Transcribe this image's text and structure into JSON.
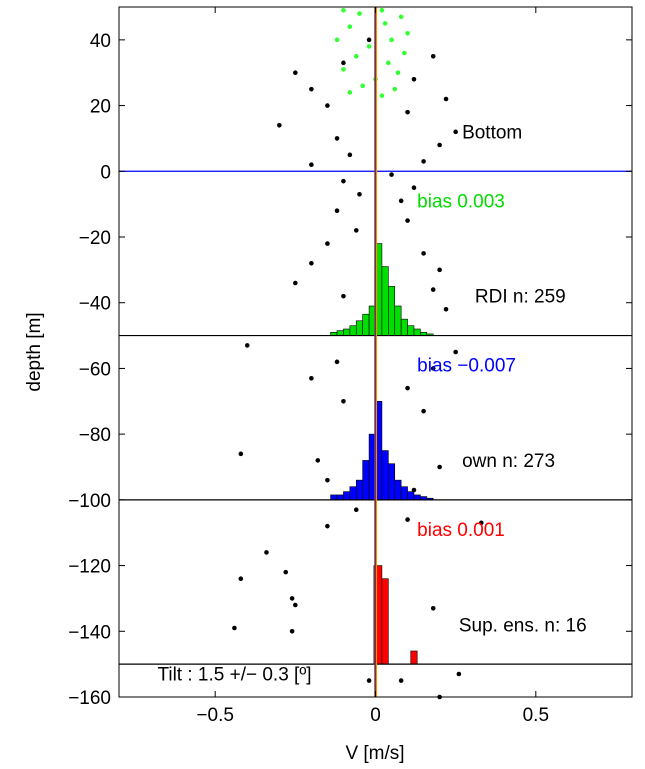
{
  "chart_data": {
    "type": "scatter",
    "xlabel": "V [m/s]",
    "ylabel": "depth [m]",
    "xlim": [
      -0.8,
      0.8
    ],
    "ylim": [
      -160,
      50
    ],
    "xticks": [
      -0.5,
      0,
      0.5
    ],
    "xtick_labels": [
      "−0.5",
      "0",
      "0.5"
    ],
    "yticks": [
      40,
      20,
      0,
      -20,
      -40,
      -60,
      -80,
      -100,
      -120,
      -140,
      -160
    ],
    "ytick_labels": [
      "40",
      "20",
      "0",
      "−20",
      "−40",
      "−60",
      "−80",
      "−100",
      "−120",
      "−140",
      "−160"
    ],
    "horizontal_lines": [
      {
        "y": 0,
        "color": "#0000ff"
      },
      {
        "y": -50,
        "color": "#000000"
      },
      {
        "y": -100,
        "color": "#000000"
      },
      {
        "y": -150,
        "color": "#000000"
      }
    ],
    "vertical_lines": [
      {
        "x": 0.0,
        "color": "#0000ff"
      },
      {
        "x": 0.003,
        "color": "#ff8c00"
      },
      {
        "x": -0.002,
        "color": "#8b4513"
      }
    ],
    "annotations": [
      {
        "text": "Bottom",
        "x": 0.27,
        "y": 10,
        "color": "#000000"
      },
      {
        "text": "bias  0.003",
        "x": 0.13,
        "y": -11,
        "color": "#00dd00"
      },
      {
        "text": "RDI n: 259",
        "x": 0.31,
        "y": -40,
        "color": "#000000"
      },
      {
        "text": "bias −0.007",
        "x": 0.13,
        "y": -61,
        "color": "#0000ff"
      },
      {
        "text": "own n: 273",
        "x": 0.27,
        "y": -90,
        "color": "#000000"
      },
      {
        "text": "bias  0.001",
        "x": 0.13,
        "y": -111,
        "color": "#ff0000"
      },
      {
        "text": "Sup. ens. n: 16",
        "x": 0.26,
        "y": -140,
        "color": "#000000"
      },
      {
        "text": "Tilt : 1.5 +/− 0.3 [º]",
        "x": -0.68,
        "y": -155,
        "color": "#000000"
      }
    ],
    "series": [
      {
        "color": "#00dd00",
        "hist_bins": [
          [
            -0.14,
            -0.12,
            1
          ],
          [
            -0.12,
            -0.1,
            1.5
          ],
          [
            -0.1,
            -0.08,
            2
          ],
          [
            -0.08,
            -0.06,
            3
          ],
          [
            -0.06,
            -0.04,
            4.5
          ],
          [
            -0.04,
            -0.02,
            6.5
          ],
          [
            -0.02,
            0.0,
            9
          ],
          [
            0.0,
            0.02,
            28
          ],
          [
            0.02,
            0.04,
            21
          ],
          [
            0.04,
            0.06,
            15
          ],
          [
            0.06,
            0.08,
            9
          ],
          [
            0.08,
            0.1,
            5
          ],
          [
            0.1,
            0.12,
            3
          ],
          [
            0.12,
            0.14,
            2
          ],
          [
            0.14,
            0.16,
            1
          ],
          [
            0.16,
            0.18,
            0.5
          ]
        ],
        "hist_base": -50
      },
      {
        "color": "#0000ff",
        "hist_bins": [
          [
            -0.14,
            -0.12,
            1.5
          ],
          [
            -0.12,
            -0.1,
            1.5
          ],
          [
            -0.1,
            -0.08,
            2.5
          ],
          [
            -0.08,
            -0.06,
            4
          ],
          [
            -0.06,
            -0.04,
            6
          ],
          [
            -0.04,
            -0.02,
            12
          ],
          [
            -0.02,
            0.0,
            20
          ],
          [
            0.0,
            0.02,
            30
          ],
          [
            0.02,
            0.04,
            15
          ],
          [
            0.04,
            0.06,
            11
          ],
          [
            0.06,
            0.08,
            6
          ],
          [
            0.08,
            0.1,
            4
          ],
          [
            0.1,
            0.12,
            2.5
          ],
          [
            0.12,
            0.14,
            1.5
          ],
          [
            0.14,
            0.16,
            1
          ],
          [
            0.16,
            0.18,
            0.5
          ]
        ],
        "hist_base": -100
      },
      {
        "color": "#ff0000",
        "hist_bins": [
          [
            -0.005,
            0.02,
            30
          ],
          [
            0.02,
            0.04,
            26
          ],
          [
            0.11,
            0.13,
            4
          ]
        ],
        "hist_base": -150
      },
      {
        "color": "#000000",
        "points": [
          [
            -0.02,
            40
          ],
          [
            -0.25,
            30
          ],
          [
            0.18,
            35
          ],
          [
            -0.1,
            33
          ],
          [
            0.12,
            28
          ],
          [
            -0.2,
            25
          ],
          [
            0.22,
            22
          ],
          [
            -0.15,
            20
          ],
          [
            0.1,
            18
          ],
          [
            -0.3,
            14
          ],
          [
            0.25,
            12
          ],
          [
            -0.12,
            10
          ],
          [
            0.2,
            8
          ],
          [
            -0.08,
            5
          ],
          [
            0.15,
            3
          ],
          [
            -0.2,
            2
          ],
          [
            0.05,
            -1
          ],
          [
            -0.1,
            -3
          ],
          [
            0.12,
            -5
          ],
          [
            -0.05,
            -7
          ],
          [
            0.08,
            -9
          ],
          [
            -0.12,
            -12
          ],
          [
            0.1,
            -15
          ],
          [
            -0.06,
            -18
          ],
          [
            -0.15,
            -22
          ],
          [
            0.15,
            -25
          ],
          [
            -0.2,
            -28
          ],
          [
            0.2,
            -30
          ],
          [
            -0.25,
            -34
          ],
          [
            0.18,
            -36
          ],
          [
            -0.1,
            -38
          ],
          [
            0.22,
            -42
          ],
          [
            -0.4,
            -53
          ],
          [
            0.25,
            -55
          ],
          [
            -0.12,
            -58
          ],
          [
            0.18,
            -60
          ],
          [
            -0.2,
            -63
          ],
          [
            0.1,
            -66
          ],
          [
            -0.1,
            -70
          ],
          [
            0.15,
            -73
          ],
          [
            -0.42,
            -86
          ],
          [
            -0.18,
            -88
          ],
          [
            0.2,
            -90
          ],
          [
            -0.15,
            -94
          ],
          [
            0.12,
            -97
          ],
          [
            -0.06,
            -103
          ],
          [
            0.1,
            -106
          ],
          [
            -0.15,
            -108
          ],
          [
            0.33,
            -107
          ],
          [
            -0.34,
            -116
          ],
          [
            -0.42,
            -124
          ],
          [
            -0.28,
            -122
          ],
          [
            -0.26,
            -130
          ],
          [
            -0.25,
            -132
          ],
          [
            -0.44,
            -139
          ],
          [
            -0.26,
            -140
          ],
          [
            0.18,
            -133
          ],
          [
            -0.02,
            -155
          ],
          [
            0.08,
            -155
          ],
          [
            0.2,
            -160
          ],
          [
            0.26,
            -153
          ]
        ]
      },
      {
        "color": "#33ff33",
        "points": [
          [
            -0.1,
            49
          ],
          [
            -0.05,
            48
          ],
          [
            0.02,
            49
          ],
          [
            0.08,
            47
          ],
          [
            -0.08,
            44
          ],
          [
            0.03,
            45
          ],
          [
            0.1,
            42
          ],
          [
            -0.12,
            40
          ],
          [
            0.05,
            40
          ],
          [
            -0.02,
            38
          ],
          [
            0.09,
            36
          ],
          [
            -0.06,
            35
          ],
          [
            0.04,
            33
          ],
          [
            -0.1,
            31
          ],
          [
            0.07,
            30
          ],
          [
            0.0,
            28
          ],
          [
            -0.04,
            26
          ],
          [
            0.06,
            25
          ],
          [
            -0.08,
            24
          ],
          [
            0.02,
            23
          ]
        ]
      }
    ]
  }
}
